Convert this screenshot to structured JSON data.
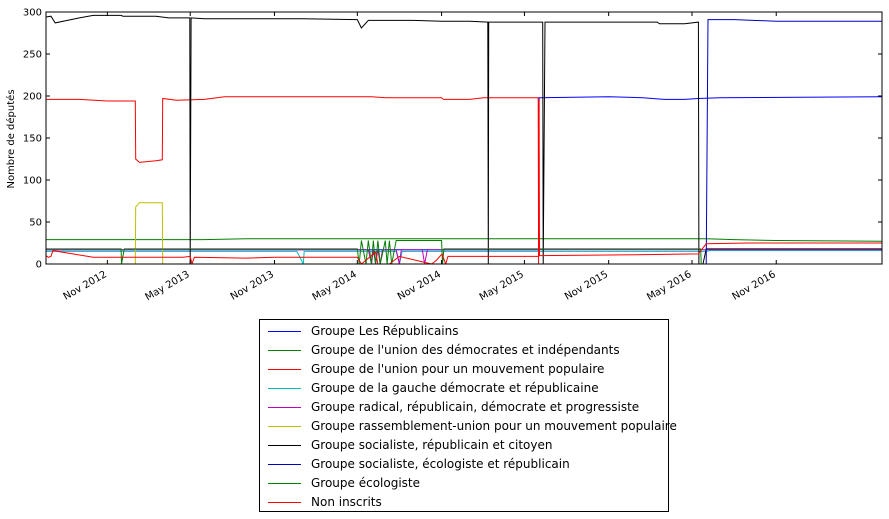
{
  "chart_data": {
    "type": "line",
    "title": "",
    "xlabel": "",
    "ylabel": "Nombre de députés",
    "x_type": "date",
    "xlim": [
      "2012-06-20",
      "2017-06-20"
    ],
    "ylim": [
      0,
      300
    ],
    "yticks": [
      0,
      50,
      100,
      150,
      200,
      250,
      300
    ],
    "xticks": [
      {
        "date": "2012-11-01",
        "label": "Nov 2012"
      },
      {
        "date": "2013-05-01",
        "label": "May 2013"
      },
      {
        "date": "2013-11-01",
        "label": "Nov 2013"
      },
      {
        "date": "2014-05-01",
        "label": "May 2014"
      },
      {
        "date": "2014-11-01",
        "label": "Nov 2014"
      },
      {
        "date": "2015-05-01",
        "label": "May 2015"
      },
      {
        "date": "2015-11-01",
        "label": "Nov 2015"
      },
      {
        "date": "2016-05-01",
        "label": "May 2016"
      },
      {
        "date": "2016-11-01",
        "label": "Nov 2016"
      }
    ],
    "grid": false,
    "legend_position": "below",
    "series": [
      {
        "name": "Groupe Les Républicains",
        "color": "#0000ff",
        "points": [
          [
            "2012-06-20",
            17
          ],
          [
            "2015-06-01",
            17
          ],
          [
            "2015-06-02",
            198
          ],
          [
            "2015-11-01",
            199
          ],
          [
            "2016-01-15",
            198
          ],
          [
            "2016-03-01",
            196
          ],
          [
            "2016-04-15",
            196
          ],
          [
            "2016-05-15",
            197
          ],
          [
            "2016-07-01",
            198
          ],
          [
            "2017-06-20",
            199
          ]
        ]
      },
      {
        "name": "Groupe de l'union des démocrates et indépendants",
        "color": "#008000",
        "points": [
          [
            "2012-06-20",
            29
          ],
          [
            "2013-06-01",
            29
          ],
          [
            "2013-09-01",
            30
          ],
          [
            "2014-06-01",
            30
          ],
          [
            "2015-06-01",
            30
          ],
          [
            "2016-06-01",
            30
          ],
          [
            "2016-08-01",
            29
          ],
          [
            "2016-11-01",
            28
          ],
          [
            "2017-06-20",
            27
          ]
        ]
      },
      {
        "name": "Groupe de l'union pour un mouvement populaire",
        "color": "#ff0000",
        "points": [
          [
            "2012-06-20",
            196
          ],
          [
            "2012-09-01",
            196
          ],
          [
            "2012-11-01",
            194
          ],
          [
            "2013-01-01",
            194
          ],
          [
            "2013-01-02",
            125
          ],
          [
            "2013-01-10",
            121
          ],
          [
            "2013-02-15",
            123
          ],
          [
            "2013-03-01",
            124
          ],
          [
            "2013-03-02",
            197
          ],
          [
            "2013-04-01",
            195
          ],
          [
            "2013-06-01",
            196
          ],
          [
            "2013-07-15",
            199
          ],
          [
            "2014-06-01",
            199
          ],
          [
            "2014-07-01",
            198
          ],
          [
            "2014-11-01",
            198
          ],
          [
            "2014-11-05",
            196
          ],
          [
            "2015-01-01",
            196
          ],
          [
            "2015-02-01",
            198
          ],
          [
            "2015-05-31",
            198
          ],
          [
            "2015-06-01",
            0
          ]
        ]
      },
      {
        "name": "Groupe de la gauche démocrate et républicaine",
        "color": "#00bfbf",
        "points": [
          [
            "2012-06-20",
            15
          ],
          [
            "2013-12-20",
            15
          ],
          [
            "2014-01-03",
            0
          ],
          [
            "2014-01-05",
            15
          ],
          [
            "2014-07-25",
            15
          ],
          [
            "2014-08-01",
            0
          ],
          [
            "2014-08-07",
            15
          ],
          [
            "2015-06-01",
            15
          ],
          [
            "2016-06-01",
            15
          ],
          [
            "2016-06-10",
            16
          ],
          [
            "2017-06-20",
            16
          ]
        ]
      },
      {
        "name": "Groupe radical, républicain, démocrate et progressiste",
        "color": "#bf00bf",
        "points": [
          [
            "2012-06-20",
            17
          ],
          [
            "2014-05-25",
            17
          ],
          [
            "2014-06-01",
            0
          ],
          [
            "2014-06-05",
            17
          ],
          [
            "2014-06-10",
            0
          ],
          [
            "2014-06-15",
            17
          ],
          [
            "2014-06-20",
            0
          ],
          [
            "2014-06-25",
            17
          ],
          [
            "2014-07-25",
            17
          ],
          [
            "2014-08-01",
            0
          ],
          [
            "2014-08-05",
            17
          ],
          [
            "2014-09-20",
            17
          ],
          [
            "2014-09-25",
            0
          ],
          [
            "2014-10-01",
            17
          ],
          [
            "2015-06-01",
            17
          ],
          [
            "2016-06-01",
            17
          ],
          [
            "2017-06-20",
            17
          ]
        ]
      },
      {
        "name": "Groupe rassemblement-union pour un mouvement populaire",
        "color": "#bfbf00",
        "points": [
          [
            "2013-01-01",
            0
          ],
          [
            "2013-01-02",
            68
          ],
          [
            "2013-01-10",
            73
          ],
          [
            "2013-03-01",
            73
          ],
          [
            "2013-03-02",
            0
          ]
        ]
      },
      {
        "name": "Groupe socialiste, républicain et citoyen",
        "color": "#000000",
        "points": [
          [
            "2012-06-20",
            294
          ],
          [
            "2012-07-01",
            295
          ],
          [
            "2012-07-10",
            287
          ],
          [
            "2012-09-01",
            293
          ],
          [
            "2012-10-01",
            296
          ],
          [
            "2012-12-01",
            296
          ],
          [
            "2012-12-05",
            295
          ],
          [
            "2013-02-15",
            295
          ],
          [
            "2013-03-15",
            293
          ],
          [
            "2013-04-30",
            293
          ],
          [
            "2013-05-01",
            0
          ],
          [
            "2013-05-03",
            293
          ],
          [
            "2013-06-01",
            292
          ],
          [
            "2014-01-01",
            292
          ],
          [
            "2014-05-01",
            291
          ],
          [
            "2014-05-10",
            281
          ],
          [
            "2014-05-25",
            290
          ],
          [
            "2014-09-01",
            290
          ],
          [
            "2014-11-01",
            289
          ],
          [
            "2015-01-01",
            289
          ],
          [
            "2015-02-10",
            288
          ],
          [
            "2015-02-11",
            0
          ],
          [
            "2015-02-12",
            288
          ],
          [
            "2015-06-10",
            288
          ],
          [
            "2015-06-11",
            0
          ],
          [
            "2015-06-15",
            288
          ],
          [
            "2015-12-01",
            288
          ],
          [
            "2016-02-15",
            288
          ],
          [
            "2016-02-20",
            286
          ],
          [
            "2016-04-15",
            286
          ],
          [
            "2016-05-15",
            288
          ],
          [
            "2016-05-16",
            0
          ],
          [
            "2016-05-25",
            0
          ],
          [
            "2016-06-01",
            18
          ],
          [
            "2017-06-20",
            18
          ]
        ]
      },
      {
        "name": "Groupe socialiste, écologiste et républicain",
        "color": "#0000bf",
        "points": [
          [
            "2016-06-01",
            0
          ],
          [
            "2016-06-05",
            291
          ],
          [
            "2016-08-01",
            291
          ],
          [
            "2016-11-01",
            289
          ],
          [
            "2017-06-20",
            289
          ]
        ]
      },
      {
        "name": "Groupe écologiste",
        "color": "#007f00",
        "points": [
          [
            "2012-06-20",
            18
          ],
          [
            "2012-12-01",
            18
          ],
          [
            "2012-12-02",
            0
          ],
          [
            "2012-12-08",
            18
          ],
          [
            "2014-05-01",
            18
          ],
          [
            "2014-05-05",
            0
          ],
          [
            "2014-05-10",
            28
          ],
          [
            "2014-05-20",
            0
          ],
          [
            "2014-05-25",
            28
          ],
          [
            "2014-06-01",
            0
          ],
          [
            "2014-06-05",
            28
          ],
          [
            "2014-06-10",
            0
          ],
          [
            "2014-06-15",
            28
          ],
          [
            "2014-06-20",
            0
          ],
          [
            "2014-07-01",
            28
          ],
          [
            "2014-07-05",
            0
          ],
          [
            "2014-07-10",
            28
          ],
          [
            "2014-07-15",
            0
          ],
          [
            "2014-07-25",
            28
          ],
          [
            "2014-11-01",
            28
          ],
          [
            "2014-11-03",
            0
          ],
          [
            "2014-11-06",
            18
          ],
          [
            "2015-06-01",
            18
          ],
          [
            "2016-05-20",
            18
          ],
          [
            "2016-05-21",
            0
          ],
          [
            "2017-06-20",
            0
          ]
        ]
      },
      {
        "name": "Non inscrits",
        "color": "#ff0000",
        "points": [
          [
            "2012-06-20",
            10
          ],
          [
            "2012-06-25",
            8
          ],
          [
            "2012-07-01",
            9
          ],
          [
            "2012-07-05",
            16
          ],
          [
            "2012-10-01",
            8
          ],
          [
            "2013-04-15",
            8
          ],
          [
            "2013-05-01",
            9
          ],
          [
            "2013-05-05",
            0
          ],
          [
            "2013-05-10",
            8
          ],
          [
            "2013-09-01",
            7
          ],
          [
            "2013-11-01",
            8
          ],
          [
            "2014-05-01",
            8
          ],
          [
            "2014-05-10",
            0
          ],
          [
            "2014-06-10",
            14
          ],
          [
            "2014-06-15",
            0
          ],
          [
            "2014-07-10",
            0
          ],
          [
            "2014-08-01",
            9
          ],
          [
            "2014-10-10",
            0
          ],
          [
            "2014-10-20",
            4
          ],
          [
            "2014-11-02",
            12
          ],
          [
            "2014-11-10",
            0
          ],
          [
            "2014-11-15",
            9
          ],
          [
            "2015-06-01",
            9
          ],
          [
            "2015-06-02",
            195
          ],
          [
            "2015-06-03",
            10
          ],
          [
            "2016-01-01",
            11
          ],
          [
            "2016-05-15",
            12
          ],
          [
            "2016-06-01",
            24
          ],
          [
            "2016-09-01",
            25
          ],
          [
            "2017-06-20",
            25
          ]
        ]
      }
    ]
  }
}
